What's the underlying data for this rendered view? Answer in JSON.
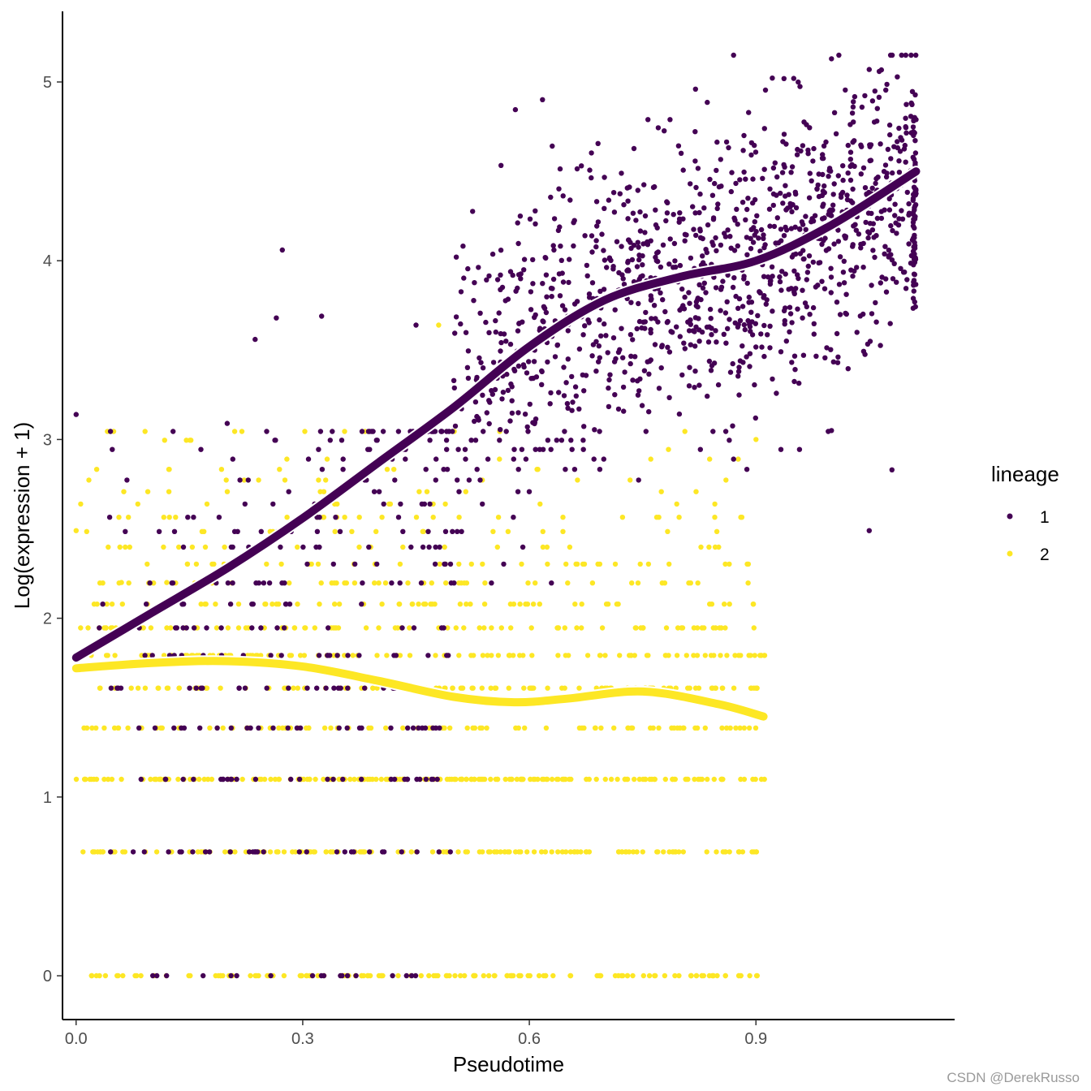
{
  "chart_data": {
    "type": "scatter",
    "title": "",
    "xlabel": "Pseudotime",
    "ylabel": "Log(expression + 1)",
    "xlim": [
      -0.018,
      1.163
    ],
    "ylim": [
      -0.245,
      5.395
    ],
    "x_ticks": [
      0.0,
      0.3,
      0.6,
      0.9
    ],
    "x_tick_labels": [
      "0.0",
      "0.3",
      "0.6",
      "0.9"
    ],
    "y_ticks": [
      0,
      1,
      2,
      3,
      4,
      5
    ],
    "y_tick_labels": [
      "0",
      "1",
      "2",
      "3",
      "4",
      "5"
    ],
    "legend": {
      "title": "lineage",
      "placement": "right",
      "entries": [
        {
          "label": "1",
          "color": "#440154"
        },
        {
          "label": "2",
          "color": "#FDE725"
        }
      ]
    },
    "discrete_levels": [
      0,
      0.693,
      1.099,
      1.386,
      1.609,
      1.792,
      1.946,
      2.079,
      2.197,
      2.303,
      2.398,
      2.485,
      2.565,
      2.639,
      2.708,
      2.773,
      2.833,
      2.89,
      2.944,
      2.996,
      3.045
    ],
    "series": [
      {
        "name": "1",
        "color": "#440154",
        "x_range": [
          0.0,
          1.112
        ],
        "approx_point_count": 1500,
        "smooth_curve": {
          "x": [
            0.0,
            0.1,
            0.2,
            0.3,
            0.4,
            0.5,
            0.6,
            0.7,
            0.8,
            0.9,
            1.0,
            1.112
          ],
          "y": [
            1.78,
            2.03,
            2.28,
            2.56,
            2.87,
            3.18,
            3.52,
            3.78,
            3.91,
            4.0,
            4.2,
            4.5
          ]
        },
        "outliers": [
          {
            "x": 0.0,
            "y": 3.14
          },
          {
            "x": 0.2,
            "y": 3.09
          },
          {
            "x": 0.237,
            "y": 3.56
          },
          {
            "x": 0.265,
            "y": 3.68
          },
          {
            "x": 0.273,
            "y": 4.06
          },
          {
            "x": 0.325,
            "y": 3.69
          },
          {
            "x": 0.45,
            "y": 3.64
          },
          {
            "x": 0.82,
            "y": 4.96
          },
          {
            "x": 0.95,
            "y": 5.02
          },
          {
            "x": 1.0,
            "y": 5.13
          },
          {
            "x": 1.05,
            "y": 5.07
          },
          {
            "x": 1.05,
            "y": 2.49
          },
          {
            "x": 1.08,
            "y": 2.83
          },
          {
            "x": 1.0,
            "y": 3.05
          }
        ]
      },
      {
        "name": "2",
        "color": "#FDE725",
        "x_range": [
          0.0,
          0.915
        ],
        "approx_point_count": 1100,
        "smooth_curve": {
          "x": [
            0.0,
            0.1,
            0.2,
            0.3,
            0.4,
            0.5,
            0.58,
            0.65,
            0.75,
            0.85,
            0.91
          ],
          "y": [
            1.72,
            1.75,
            1.76,
            1.73,
            1.65,
            1.56,
            1.53,
            1.55,
            1.59,
            1.52,
            1.45
          ]
        },
        "outliers": [
          {
            "x": 0.0,
            "y": 2.49
          },
          {
            "x": 0.06,
            "y": 2.2
          },
          {
            "x": 0.12,
            "y": 2.2
          },
          {
            "x": 0.17,
            "y": 2.2
          },
          {
            "x": 0.48,
            "y": 3.64
          },
          {
            "x": 0.9,
            "y": 3.0
          }
        ]
      }
    ]
  },
  "watermark": "CSDN @DerekRusso"
}
